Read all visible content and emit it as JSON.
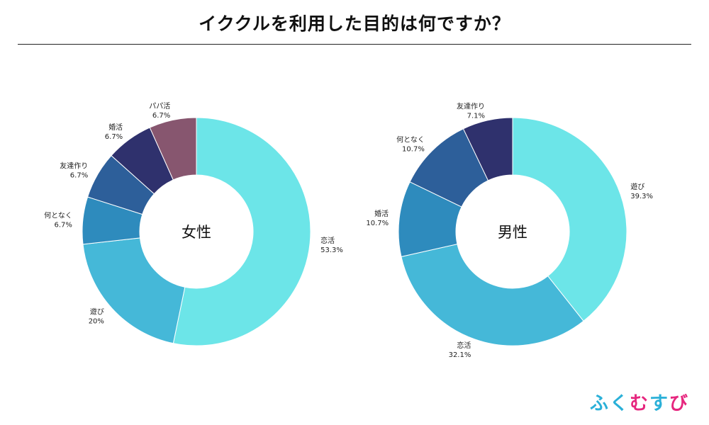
{
  "title": "イククルを利用した目的は何ですか？",
  "chart_data": [
    {
      "type": "pie",
      "center_label": "女性",
      "unit": "%",
      "slices": [
        {
          "label": "恋活",
          "value": 53.3,
          "display": "53.3%",
          "color": "#6ce5e8"
        },
        {
          "label": "遊び",
          "value": 20,
          "display": "20%",
          "color": "#45b8d8"
        },
        {
          "label": "何となく",
          "value": 6.7,
          "display": "6.7%",
          "color": "#2e8bbd"
        },
        {
          "label": "友達作り",
          "value": 6.7,
          "display": "6.7%",
          "color": "#2d5f9a"
        },
        {
          "label": "婚活",
          "value": 6.7,
          "display": "6.7%",
          "color": "#2f316d"
        },
        {
          "label": "パパ活",
          "value": 6.7,
          "display": "6.7%",
          "color": "#87566f"
        }
      ]
    },
    {
      "type": "pie",
      "center_label": "男性",
      "unit": "%",
      "slices": [
        {
          "label": "遊び",
          "value": 39.3,
          "display": "39.3%",
          "color": "#6ce5e8"
        },
        {
          "label": "恋活",
          "value": 32.1,
          "display": "32.1%",
          "color": "#45b8d8"
        },
        {
          "label": "婚活",
          "value": 10.7,
          "display": "10.7%",
          "color": "#2e8bbd"
        },
        {
          "label": "何となく",
          "value": 10.7,
          "display": "10.7%",
          "color": "#2d5f9a"
        },
        {
          "label": "友達作り",
          "value": 7.1,
          "display": "7.1%",
          "color": "#2f316d"
        }
      ]
    }
  ],
  "logo": {
    "chars": [
      {
        "text": "ふ",
        "color": "#2ab0d8"
      },
      {
        "text": "く",
        "color": "#2ab0d8"
      },
      {
        "text": "む",
        "color": "#e6267e"
      },
      {
        "text": "す",
        "color": "#2ab0d8"
      },
      {
        "text": "び",
        "color": "#e6267e"
      }
    ]
  }
}
